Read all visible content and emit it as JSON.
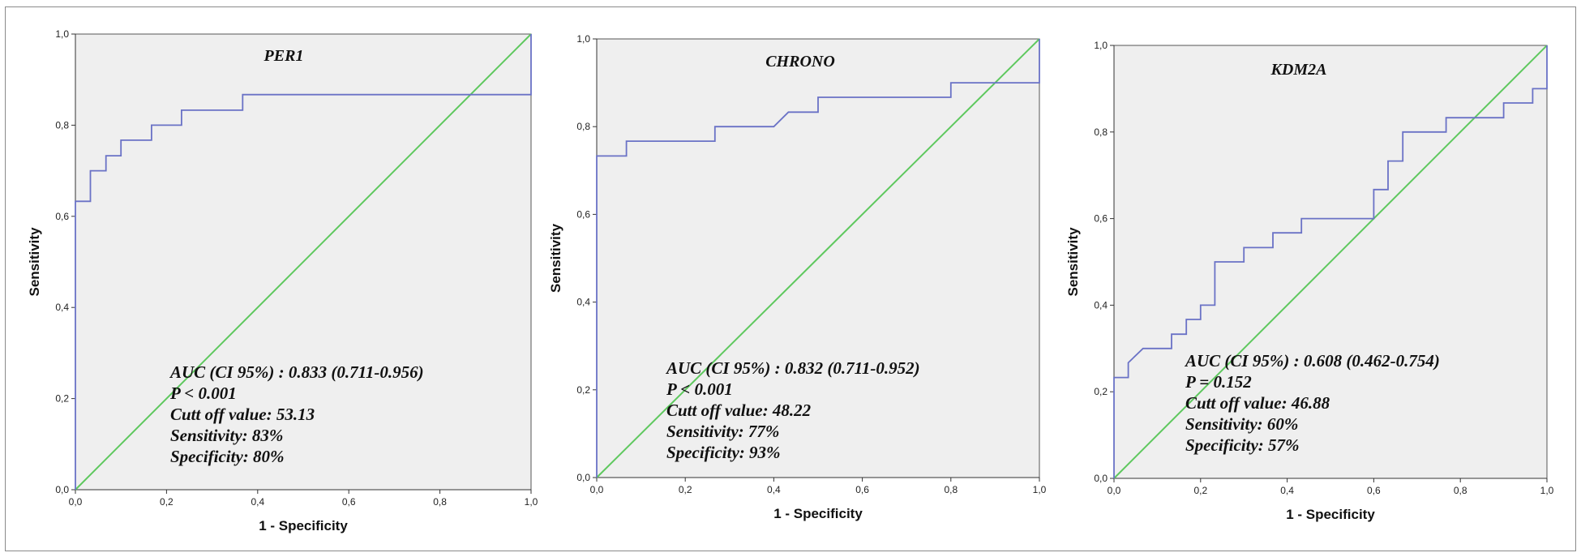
{
  "colors": {
    "background": "#efefef",
    "roc_curve": "#6a72c6",
    "reference_line": "#5ec85e"
  },
  "chart_data": [
    {
      "type": "line",
      "title": "PER1",
      "xlabel": "1 - Specificity",
      "ylabel": "Sensitivity",
      "xlim": [
        0,
        1
      ],
      "ylim": [
        0,
        1
      ],
      "x_ticks": [
        "0,0",
        "0,2",
        "0,4",
        "0,6",
        "0,8",
        "1,0"
      ],
      "y_ticks": [
        "0,0",
        "0,2",
        "0,4",
        "0,6",
        "0,8",
        "1,0"
      ],
      "grid": false,
      "roc_points": [
        [
          0,
          0
        ],
        [
          0,
          0.633
        ],
        [
          0.033,
          0.633
        ],
        [
          0.033,
          0.7
        ],
        [
          0.067,
          0.7
        ],
        [
          0.067,
          0.733
        ],
        [
          0.1,
          0.733
        ],
        [
          0.1,
          0.767
        ],
        [
          0.167,
          0.767
        ],
        [
          0.167,
          0.8
        ],
        [
          0.233,
          0.8
        ],
        [
          0.233,
          0.833
        ],
        [
          0.367,
          0.833
        ],
        [
          0.367,
          0.867
        ],
        [
          1,
          0.867
        ],
        [
          1,
          1
        ]
      ],
      "reference_line": [
        [
          0,
          0
        ],
        [
          1,
          1
        ]
      ],
      "annotations": [
        "AUC (CI 95%) : 0.833 (0.711-0.956)",
        "P < 0.001",
        "Cutt off value: 53.13",
        "Sensitivity: 83%",
        "Specificity: 80%"
      ]
    },
    {
      "type": "line",
      "title": "CHRONO",
      "xlabel": "1 - Specificity",
      "ylabel": "Sensitivity",
      "xlim": [
        0,
        1
      ],
      "ylim": [
        0,
        1
      ],
      "x_ticks": [
        "0,0",
        "0,2",
        "0,4",
        "0,6",
        "0,8",
        "1,0"
      ],
      "y_ticks": [
        "0,0",
        "0,2",
        "0,4",
        "0,6",
        "0,8",
        "1,0"
      ],
      "grid": false,
      "roc_points": [
        [
          0,
          0
        ],
        [
          0,
          0.733
        ],
        [
          0.067,
          0.733
        ],
        [
          0.067,
          0.767
        ],
        [
          0.267,
          0.767
        ],
        [
          0.267,
          0.8
        ],
        [
          0.4,
          0.8
        ],
        [
          0.433,
          0.833
        ],
        [
          0.5,
          0.833
        ],
        [
          0.5,
          0.867
        ],
        [
          0.8,
          0.867
        ],
        [
          0.8,
          0.9
        ],
        [
          1,
          0.9
        ],
        [
          1,
          1
        ]
      ],
      "reference_line": [
        [
          0,
          0
        ],
        [
          1,
          1
        ]
      ],
      "annotations": [
        "AUC (CI 95%) : 0.832 (0.711-0.952)",
        "P < 0.001",
        "Cutt off value: 48.22",
        "Sensitivity: 77%",
        "Specificity: 93%"
      ]
    },
    {
      "type": "line",
      "title": "KDM2A",
      "xlabel": "1 - Specificity",
      "ylabel": "Sensitivity",
      "xlim": [
        0,
        1
      ],
      "ylim": [
        0,
        1
      ],
      "x_ticks": [
        "0,0",
        "0,2",
        "0,4",
        "0,6",
        "0,8",
        "1,0"
      ],
      "y_ticks": [
        "0,0",
        "0,2",
        "0,4",
        "0,6",
        "0,8",
        "1,0"
      ],
      "grid": false,
      "roc_points": [
        [
          0,
          0
        ],
        [
          0,
          0.233
        ],
        [
          0.033,
          0.233
        ],
        [
          0.033,
          0.267
        ],
        [
          0.067,
          0.3
        ],
        [
          0.133,
          0.3
        ],
        [
          0.133,
          0.333
        ],
        [
          0.167,
          0.333
        ],
        [
          0.167,
          0.367
        ],
        [
          0.2,
          0.367
        ],
        [
          0.2,
          0.4
        ],
        [
          0.233,
          0.4
        ],
        [
          0.233,
          0.5
        ],
        [
          0.3,
          0.5
        ],
        [
          0.3,
          0.533
        ],
        [
          0.367,
          0.533
        ],
        [
          0.367,
          0.567
        ],
        [
          0.433,
          0.567
        ],
        [
          0.433,
          0.6
        ],
        [
          0.6,
          0.6
        ],
        [
          0.6,
          0.667
        ],
        [
          0.633,
          0.667
        ],
        [
          0.633,
          0.733
        ],
        [
          0.667,
          0.733
        ],
        [
          0.667,
          0.8
        ],
        [
          0.767,
          0.8
        ],
        [
          0.767,
          0.833
        ],
        [
          0.9,
          0.833
        ],
        [
          0.9,
          0.867
        ],
        [
          0.967,
          0.867
        ],
        [
          0.967,
          0.9
        ],
        [
          1,
          0.9
        ],
        [
          1,
          1
        ]
      ],
      "reference_line": [
        [
          0,
          0
        ],
        [
          1,
          1
        ]
      ],
      "annotations": [
        "AUC (CI 95%) : 0.608 (0.462-0.754)",
        "P = 0.152",
        "Cutt off value: 46.88",
        "Sensitivity: 60%",
        "Specificity: 57%"
      ]
    }
  ]
}
